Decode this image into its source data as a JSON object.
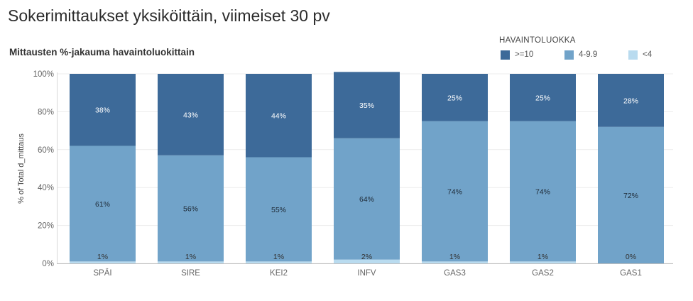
{
  "header": {
    "title": "Sokerimittaukset yksiköittäin, viimeiset 30 pv"
  },
  "chart_data": {
    "type": "bar",
    "stacked": true,
    "subtitle": "Mittausten %-jakauma havaintoluokittain",
    "ylabel": "% of Total d_mittaus",
    "ylim": [
      0,
      100
    ],
    "yticks": [
      "0%",
      "20%",
      "40%",
      "60%",
      "80%",
      "100%"
    ],
    "grid": true,
    "legend": {
      "title": "HAVAINTOLUOKKA",
      "placement": "top-right"
    },
    "categories": [
      "SPÄI",
      "SIRE",
      "KEI2",
      "INFV",
      "GAS3",
      "GAS2",
      "GAS1"
    ],
    "series": [
      {
        "name": "<4",
        "color": "#b9dbef",
        "label_color": "#333333",
        "values": [
          1,
          1,
          1,
          2,
          1,
          1,
          0
        ],
        "labels": [
          "1%",
          "1%",
          "1%",
          "2%",
          "1%",
          "1%",
          "0%"
        ]
      },
      {
        "name": "4-9.9",
        "color": "#71a3c9",
        "label_color": "#1e2a36",
        "values": [
          61,
          56,
          55,
          64,
          74,
          74,
          72
        ],
        "labels": [
          "61%",
          "56%",
          "55%",
          "64%",
          "74%",
          "74%",
          "72%"
        ]
      },
      {
        "name": ">=10",
        "color": "#3d6a99",
        "label_color": "#ffffff",
        "values": [
          38,
          43,
          44,
          35,
          25,
          25,
          28
        ],
        "labels": [
          "38%",
          "43%",
          "44%",
          "35%",
          "25%",
          "25%",
          "28%"
        ]
      }
    ]
  }
}
